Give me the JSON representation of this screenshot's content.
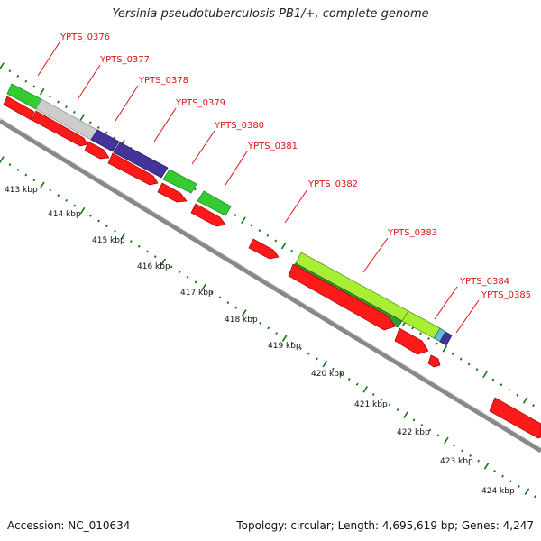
{
  "header": {
    "title": "Yersinia pseudotuberculosis PB1/+, complete genome"
  },
  "footer": {
    "accession_text": "Accession: NC_010634",
    "topology_text": "Topology: circular; Length: 4,695,619 bp; Genes: 4,247"
  },
  "colors": {
    "cds_red": "#ff1a1a",
    "gene_green": "#33cc33",
    "gene_gray": "#cccccc",
    "gene_purple": "#443399",
    "gene_lime": "#a8ee33",
    "gene_darkgreen": "#339933",
    "gene_teal": "#66bbcc",
    "label_red": "#dd1111",
    "tick_green": "#117711",
    "backbone_gray": "#999999"
  },
  "kbp_labels": [
    "413 kbp",
    "414 kbp",
    "415 kbp",
    "416 kbp",
    "417 kbp",
    "418 kbp",
    "419 kbp",
    "420 kbp",
    "421 kbp",
    "422 kbp",
    "423 kbp",
    "424 kbp"
  ],
  "genes": [
    {
      "label": "YPTS_0376"
    },
    {
      "label": "YPTS_0377"
    },
    {
      "label": "YPTS_0378"
    },
    {
      "label": "YPTS_0379"
    },
    {
      "label": "YPTS_0380"
    },
    {
      "label": "YPTS_0381"
    },
    {
      "label": "YPTS_0382"
    },
    {
      "label": "YPTS_0383"
    },
    {
      "label": "YPTS_0384"
    },
    {
      "label": "YPTS_0385"
    }
  ]
}
